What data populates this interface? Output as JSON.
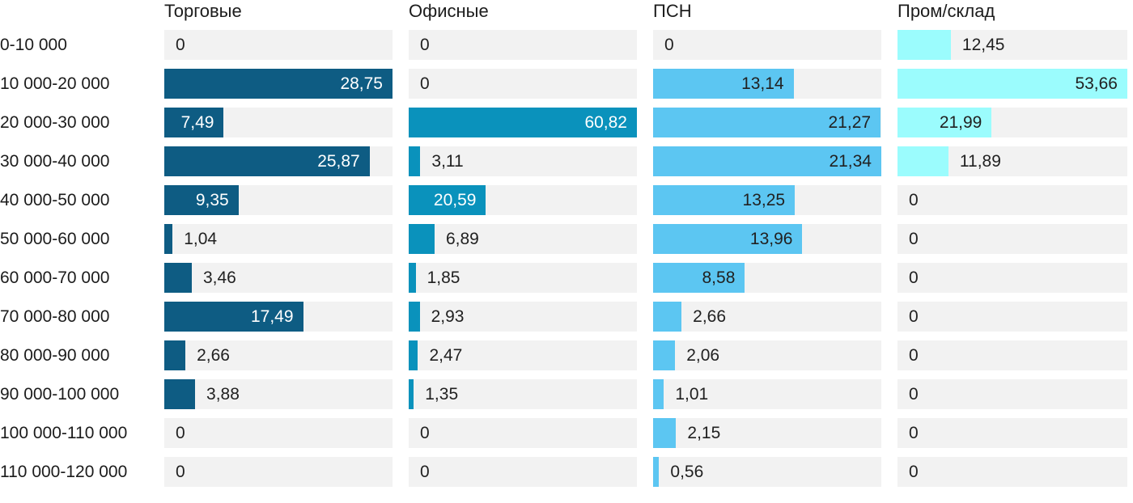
{
  "chart_data": {
    "type": "bar",
    "orientation": "horizontal",
    "title": "",
    "value_decimal_separator": ",",
    "grid": false,
    "legend_position": "column-headers-top",
    "scaling": "each column scaled independently to its own maximum value",
    "track_color": "#f2f2f2",
    "label_color": "#1c1c1c",
    "outside_value_color": "#212121",
    "categories": [
      "0-10 000",
      "10 000-20 000",
      "20 000-30 000",
      "30 000-40 000",
      "40 000-50 000",
      "50 000-60 000",
      "60 000-70 000",
      "70 000-80 000",
      "80 000-90 000",
      "90 000-100 000",
      "100 000-110 000",
      "110 000-120 000"
    ],
    "series": [
      {
        "name": "Торговые",
        "color": "#0e5c83",
        "inside_text_color": "#ffffff",
        "max": 28.75,
        "values": [
          0,
          28.75,
          7.49,
          25.87,
          9.35,
          1.04,
          3.46,
          17.49,
          2.66,
          3.88,
          0,
          0
        ]
      },
      {
        "name": "Офисные",
        "color": "#0a92bc",
        "inside_text_color": "#ffffff",
        "max": 60.82,
        "values": [
          0,
          0,
          60.82,
          3.11,
          20.59,
          6.89,
          1.85,
          2.93,
          2.47,
          1.35,
          0,
          0
        ]
      },
      {
        "name": "ПСН",
        "color": "#5cc6f2",
        "inside_text_color": "#212121",
        "max": 21.34,
        "values": [
          0,
          13.14,
          21.27,
          21.34,
          13.25,
          13.96,
          8.58,
          2.66,
          2.06,
          1.01,
          2.15,
          0.56
        ]
      },
      {
        "name": "Пром/склад",
        "color": "#9bfcfd",
        "inside_text_color": "#212121",
        "max": 53.66,
        "values": [
          12.45,
          53.66,
          21.99,
          11.89,
          0,
          0,
          0,
          0,
          0,
          0,
          0,
          0
        ]
      }
    ]
  }
}
